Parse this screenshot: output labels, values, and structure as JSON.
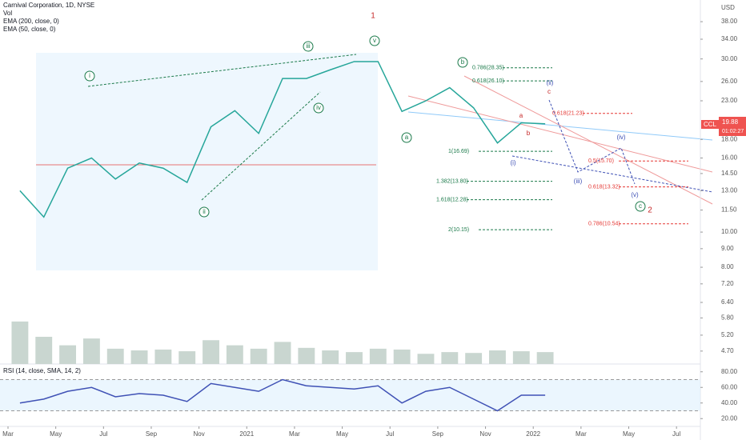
{
  "header": {
    "title": "Carnival Corporation, 1D, NYSE",
    "indicators": [
      "Vol",
      "EMA (200, close, 0)",
      "EMA (50, close, 0)"
    ],
    "currency": "USD",
    "countdown": "01:02:27"
  },
  "chart_data": [
    {
      "type": "line",
      "x": [
        "2020-03",
        "2020-04",
        "2020-05",
        "2020-06",
        "2020-07",
        "2020-08",
        "2020-09",
        "2020-10",
        "2020-11",
        "2020-12",
        "2021-01",
        "2021-02",
        "2021-03",
        "2021-04",
        "2021-05",
        "2021-06",
        "2021-07",
        "2021-08",
        "2021-09",
        "2021-10",
        "2021-11",
        "2021-12",
        "2022-01"
      ],
      "series": [
        {
          "name": "CCL",
          "color": "#26a69a",
          "values": [
            13,
            11,
            15,
            16,
            14,
            15.5,
            15,
            13.7,
            19.5,
            21.6,
            18.7,
            26.5,
            26.5,
            28,
            29.5,
            29.5,
            21.5,
            23,
            25,
            22,
            17.6,
            20,
            19.88
          ]
        }
      ],
      "log_scale": true,
      "ylim": [
        4.33,
        43.6
      ],
      "yticks": [
        {
          "value": 38,
          "label": "38.00"
        },
        {
          "value": 34,
          "label": "34.00"
        },
        {
          "value": 30,
          "label": "30.00"
        },
        {
          "value": 26,
          "label": "26.00"
        },
        {
          "value": 23,
          "label": "23.00"
        },
        {
          "value": 18,
          "label": "18.00"
        },
        {
          "value": 16,
          "label": "16.00"
        },
        {
          "value": 14.5,
          "label": "14.50"
        },
        {
          "value": 13,
          "label": "13.00"
        },
        {
          "value": 11.5,
          "label": "11.50"
        },
        {
          "value": 10,
          "label": "10.00"
        },
        {
          "value": 9,
          "label": "9.00"
        },
        {
          "value": 8,
          "label": "8.00"
        },
        {
          "value": 7.2,
          "label": "7.20"
        },
        {
          "value": 6.4,
          "label": "6.40"
        },
        {
          "value": 5.8,
          "label": "5.80"
        },
        {
          "value": 5.2,
          "label": "5.20"
        },
        {
          "value": 4.7,
          "label": "4.70"
        }
      ],
      "xlim": [
        "2020-03",
        "2022-08"
      ],
      "xticks": [
        {
          "value": "2020-03",
          "label": "Mar"
        },
        {
          "value": "2020-05",
          "label": "May"
        },
        {
          "value": "2020-07",
          "label": "Jul"
        },
        {
          "value": "2020-09",
          "label": "Sep"
        },
        {
          "value": "2020-11",
          "label": "Nov"
        },
        {
          "value": "2021-01",
          "label": "2021"
        },
        {
          "value": "2021-03",
          "label": "Mar"
        },
        {
          "value": "2021-05",
          "label": "May"
        },
        {
          "value": "2021-07",
          "label": "Jul"
        },
        {
          "value": "2021-09",
          "label": "Sep"
        },
        {
          "value": "2021-11",
          "label": "Nov"
        },
        {
          "value": "2022-01",
          "label": "2022"
        },
        {
          "value": "2022-03",
          "label": "Mar"
        },
        {
          "value": "2022-05",
          "label": "May"
        },
        {
          "value": "2022-07",
          "label": "Jul"
        }
      ],
      "levels": [
        {
          "value": 28.35,
          "label": "0.786(28.35)"
        },
        {
          "value": 26.1,
          "label": "0.618(26.10)"
        },
        {
          "value": 21.23,
          "label": "0.618(21.23)"
        },
        {
          "value": 16.69,
          "label": "1(16.69)"
        },
        {
          "value": 13.8,
          "label": "1.382(13.80)"
        },
        {
          "value": 12.28,
          "label": "1.618(12.28)"
        },
        {
          "value": 10.15,
          "label": "2(10.15)"
        },
        {
          "value": 15.7,
          "label": "0.5(15.70)"
        },
        {
          "value": 13.32,
          "label": "0.618(13.32)"
        },
        {
          "value": 10.54,
          "label": "0.786(10.54)"
        }
      ],
      "wave_labels": [
        "1",
        "2",
        "i",
        "ii",
        "iii",
        "iv",
        "v",
        "a",
        "b",
        "c",
        "(i)",
        "(ii)",
        "(iii)",
        "(iv)",
        "(v)",
        "a",
        "b",
        "c"
      ]
    },
    {
      "type": "bar",
      "title": "Vol",
      "color": "#c9d6d0",
      "x": [
        "2020-03",
        "2020-04",
        "2020-05",
        "2020-06",
        "2020-07",
        "2020-08",
        "2020-09",
        "2020-10",
        "2020-11",
        "2020-12",
        "2021-01",
        "2021-02",
        "2021-03",
        "2021-04",
        "2021-05",
        "2021-06",
        "2021-07",
        "2021-08",
        "2021-09",
        "2021-10",
        "2021-11",
        "2021-12",
        "2022-01"
      ],
      "values": [
        250,
        160,
        110,
        150,
        90,
        80,
        85,
        75,
        140,
        110,
        90,
        130,
        95,
        80,
        70,
        90,
        85,
        60,
        70,
        65,
        80,
        75,
        70
      ],
      "ylim": [
        0,
        400
      ]
    },
    {
      "type": "line",
      "title": "RSI (14, close, SMA, 14, 2)",
      "color": "#3f51b5",
      "x": [
        "2020-03",
        "2020-04",
        "2020-05",
        "2020-06",
        "2020-07",
        "2020-08",
        "2020-09",
        "2020-10",
        "2020-11",
        "2020-12",
        "2021-01",
        "2021-02",
        "2021-03",
        "2021-04",
        "2021-05",
        "2021-06",
        "2021-07",
        "2021-08",
        "2021-09",
        "2021-10",
        "2021-11",
        "2021-12",
        "2022-01"
      ],
      "values": [
        40,
        45,
        55,
        60,
        48,
        52,
        50,
        42,
        65,
        60,
        55,
        70,
        62,
        60,
        58,
        62,
        40,
        55,
        60,
        45,
        30,
        50,
        50
      ],
      "ylim": [
        10,
        90
      ],
      "yticks": [
        {
          "value": 80,
          "label": "80.00"
        },
        {
          "value": 60,
          "label": "60.00"
        },
        {
          "value": 40,
          "label": "40.00"
        },
        {
          "value": 20,
          "label": "20.00"
        }
      ],
      "bands": [
        70,
        30
      ]
    }
  ]
}
